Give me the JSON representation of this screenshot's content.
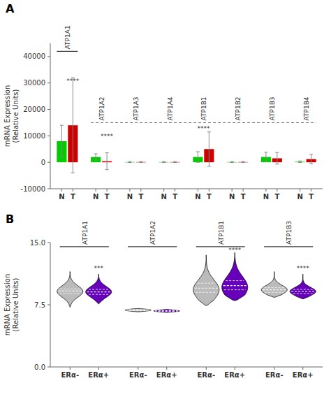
{
  "chart_data": [
    {
      "type": "bar",
      "title": "A",
      "ylabel": "mRNA Expression\n(Relative Units)",
      "categories": [
        "ATP1A1",
        "ATP1A2",
        "ATP1A3",
        "ATP1A4",
        "ATP1B1",
        "ATP1B2",
        "ATP1B3",
        "ATP1B4"
      ],
      "series": [
        {
          "name": "N",
          "color": "#00CC00",
          "values": [
            8000,
            2000,
            100,
            100,
            2000,
            100,
            2000,
            200
          ],
          "errors": [
            6000,
            1200,
            200,
            200,
            2000,
            200,
            1800,
            300
          ]
        },
        {
          "name": "T",
          "color": "#CC0000",
          "values": [
            14000,
            400,
            100,
            100,
            5000,
            100,
            1500,
            1200
          ],
          "errors": [
            18000,
            3200,
            200,
            200,
            6500,
            200,
            2200,
            1800
          ]
        }
      ],
      "ylim": [
        -10000,
        45000
      ],
      "yticks": [
        -10000,
        0,
        10000,
        20000,
        30000,
        40000
      ],
      "brackets": [
        {
          "y": 42000,
          "first": "ATP1A1",
          "last": "ATP1A1",
          "line_style": "solid"
        },
        {
          "y": 15000,
          "first": "ATP1A2",
          "last": "ATP1B4",
          "line_style": "dashed"
        }
      ],
      "annotations": [
        {
          "text": "****",
          "category": "ATP1A1",
          "series": "T",
          "y": 30000
        },
        {
          "text": "****",
          "category": "ATP1A2",
          "series": "T",
          "y": 9000
        },
        {
          "text": "****",
          "category": "ATP1B1",
          "y": 12000
        }
      ]
    },
    {
      "type": "violin",
      "title": "B",
      "ylabel": "mRNA Expression\n(Relative Units)",
      "categories": [
        "ATP1A1",
        "ATP1A2",
        "ATP1B1",
        "ATP1B3"
      ],
      "series": [
        {
          "name": "ERα-",
          "color": "#BBBBBB",
          "median": [
            9.15,
            6.85,
            9.5,
            9.3
          ],
          "q1": [
            8.85,
            6.78,
            9.0,
            9.0
          ],
          "q3": [
            9.4,
            6.92,
            10.1,
            9.55
          ],
          "min": [
            7.2,
            6.65,
            7.4,
            8.4
          ],
          "max": [
            11.5,
            7.05,
            13.5,
            11.5
          ],
          "body_center": [
            9.1,
            6.85,
            9.3,
            9.3
          ],
          "body_spread": [
            0.7,
            0.12,
            1.2,
            0.55
          ]
        },
        {
          "name": "ERα+",
          "color": "#6600BB",
          "median": [
            9.05,
            6.75,
            9.8,
            9.1
          ],
          "q1": [
            8.75,
            6.68,
            9.3,
            8.85
          ],
          "q3": [
            9.35,
            6.82,
            10.4,
            9.35
          ],
          "min": [
            7.6,
            6.58,
            8.0,
            8.2
          ],
          "max": [
            11.2,
            6.95,
            13.8,
            11.2
          ],
          "body_center": [
            9.05,
            6.75,
            9.6,
            9.1
          ],
          "body_spread": [
            0.65,
            0.1,
            1.3,
            0.5
          ]
        }
      ],
      "ylim": [
        0,
        15
      ],
      "yticks": [
        {
          "value": 0,
          "label": "0.0"
        },
        7.5,
        {
          "value": 15,
          "label": "15.0"
        }
      ],
      "brackets": [
        {
          "y": 14.5,
          "first": "ATP1A1",
          "last": "ATP1A1",
          "line_style": "solid"
        },
        {
          "y": 14.5,
          "first": "ATP1A2",
          "last": "ATP1A2",
          "line_style": "solid"
        },
        {
          "y": 14.5,
          "first": "ATP1B1",
          "last": "ATP1B1",
          "line_style": "solid"
        },
        {
          "y": 14.5,
          "first": "ATP1B3",
          "last": "ATP1B3",
          "line_style": "solid"
        }
      ],
      "annotations": [
        {
          "text": "***",
          "category": "ATP1A1",
          "series": "ERα+",
          "y": 11.6
        },
        {
          "text": "****",
          "category": "ATP1B1",
          "series": "ERα+",
          "y": 13.85
        },
        {
          "text": "****",
          "category": "ATP1B3",
          "series": "ERα+",
          "y": 11.6
        }
      ]
    }
  ]
}
